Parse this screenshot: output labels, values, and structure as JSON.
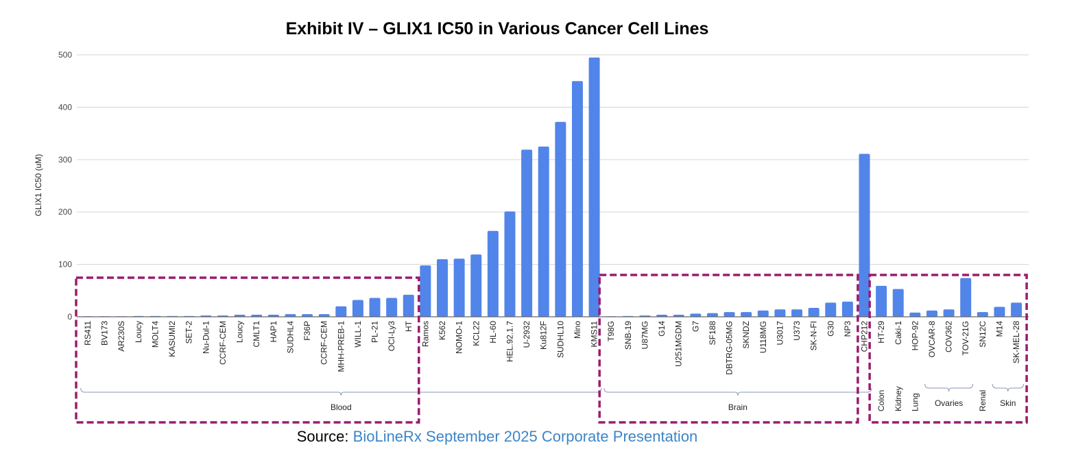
{
  "chart_data": {
    "type": "bar",
    "title": "Exhibit IV – GLIX1 IC50 in Various Cancer Cell Lines",
    "xlabel": "",
    "ylabel": "GLIX1 IC50 (uM)",
    "ylim": [
      0,
      500
    ],
    "yticks": [
      "0",
      "100",
      "200",
      "300",
      "400",
      "500"
    ],
    "grid": true,
    "legend": "none",
    "bar_color": "#5285ea",
    "highlight_color": "#9b1b6e",
    "categories": [
      "RS411",
      "BV173",
      "AR230S",
      "Loucy",
      "MOLT4",
      "KASUMI2",
      "SET-2",
      "Nu-Dul-1",
      "CCRF-CEM",
      "Loucy",
      "CMLT1",
      "HAP1",
      "SUDHL4",
      "F36P",
      "CCRF-CEM",
      "MHH-PREB-1",
      "WILL-1",
      "PL-21",
      "OCI-Ly3",
      "HT",
      "Ramos",
      "K562",
      "NOMO-1",
      "KCL22",
      "HL-60",
      "HEL.92.1.7",
      "U-2932",
      "Ku812F",
      "SUDHL10",
      "Mino",
      "KMS11",
      "T98G",
      "SNB-19",
      "U87MG",
      "G14",
      "U251MGDM",
      "G7",
      "SF188",
      "DBTRG-05MG",
      "SKNDZ",
      "U118MG",
      "U3017",
      "U373",
      "SK-N-FI",
      "G30",
      "NP3",
      "CHP212",
      "HT-29",
      "Caki-1",
      "HOP-92",
      "OVCAR-8",
      "COV362",
      "TOV-21G",
      "SN12C",
      "M14",
      "SK-MEL-28"
    ],
    "values": [
      0.5,
      0.5,
      0.5,
      1.5,
      1.5,
      1.5,
      1.5,
      2.5,
      2.5,
      4,
      4,
      4,
      5,
      5,
      5,
      20,
      32,
      36,
      36,
      42,
      98,
      110,
      111,
      119,
      164,
      201,
      319,
      325,
      372,
      450,
      495,
      0.5,
      1.5,
      2.5,
      4,
      4,
      6,
      7,
      9,
      9,
      12,
      14,
      14,
      17,
      27,
      29,
      311,
      59,
      53,
      8,
      12,
      14,
      74,
      9,
      19,
      27
    ],
    "groups": [
      {
        "label": "Blood",
        "start": 0,
        "end": 30
      },
      {
        "label": "Brain",
        "start": 31,
        "end": 46
      },
      {
        "label": "Colon",
        "start": 47,
        "end": 47,
        "vertical": true
      },
      {
        "label": "Kidney",
        "start": 48,
        "end": 48,
        "vertical": true
      },
      {
        "label": "Lung",
        "start": 49,
        "end": 49,
        "vertical": true
      },
      {
        "label": "Ovaries",
        "start": 50,
        "end": 52
      },
      {
        "label": "Renal",
        "start": 53,
        "end": 53,
        "vertical": true
      },
      {
        "label": "Skin",
        "start": 54,
        "end": 55
      }
    ],
    "highlight_boxes": [
      {
        "start": 0,
        "end": 19
      },
      {
        "start": 31,
        "end": 45
      },
      {
        "start": 47,
        "end": 55
      }
    ]
  },
  "source": {
    "label": "Source:",
    "text": "BioLineRx September 2025 Corporate Presentation"
  }
}
